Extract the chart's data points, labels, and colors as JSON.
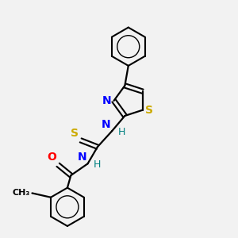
{
  "bg_color": "#f2f2f2",
  "atom_colors": {
    "S": "#ccaa00",
    "N": "#0000ff",
    "O": "#ff0000",
    "H": "#008080",
    "C": "#000000"
  },
  "bond_color": "#000000",
  "font_size": 9
}
